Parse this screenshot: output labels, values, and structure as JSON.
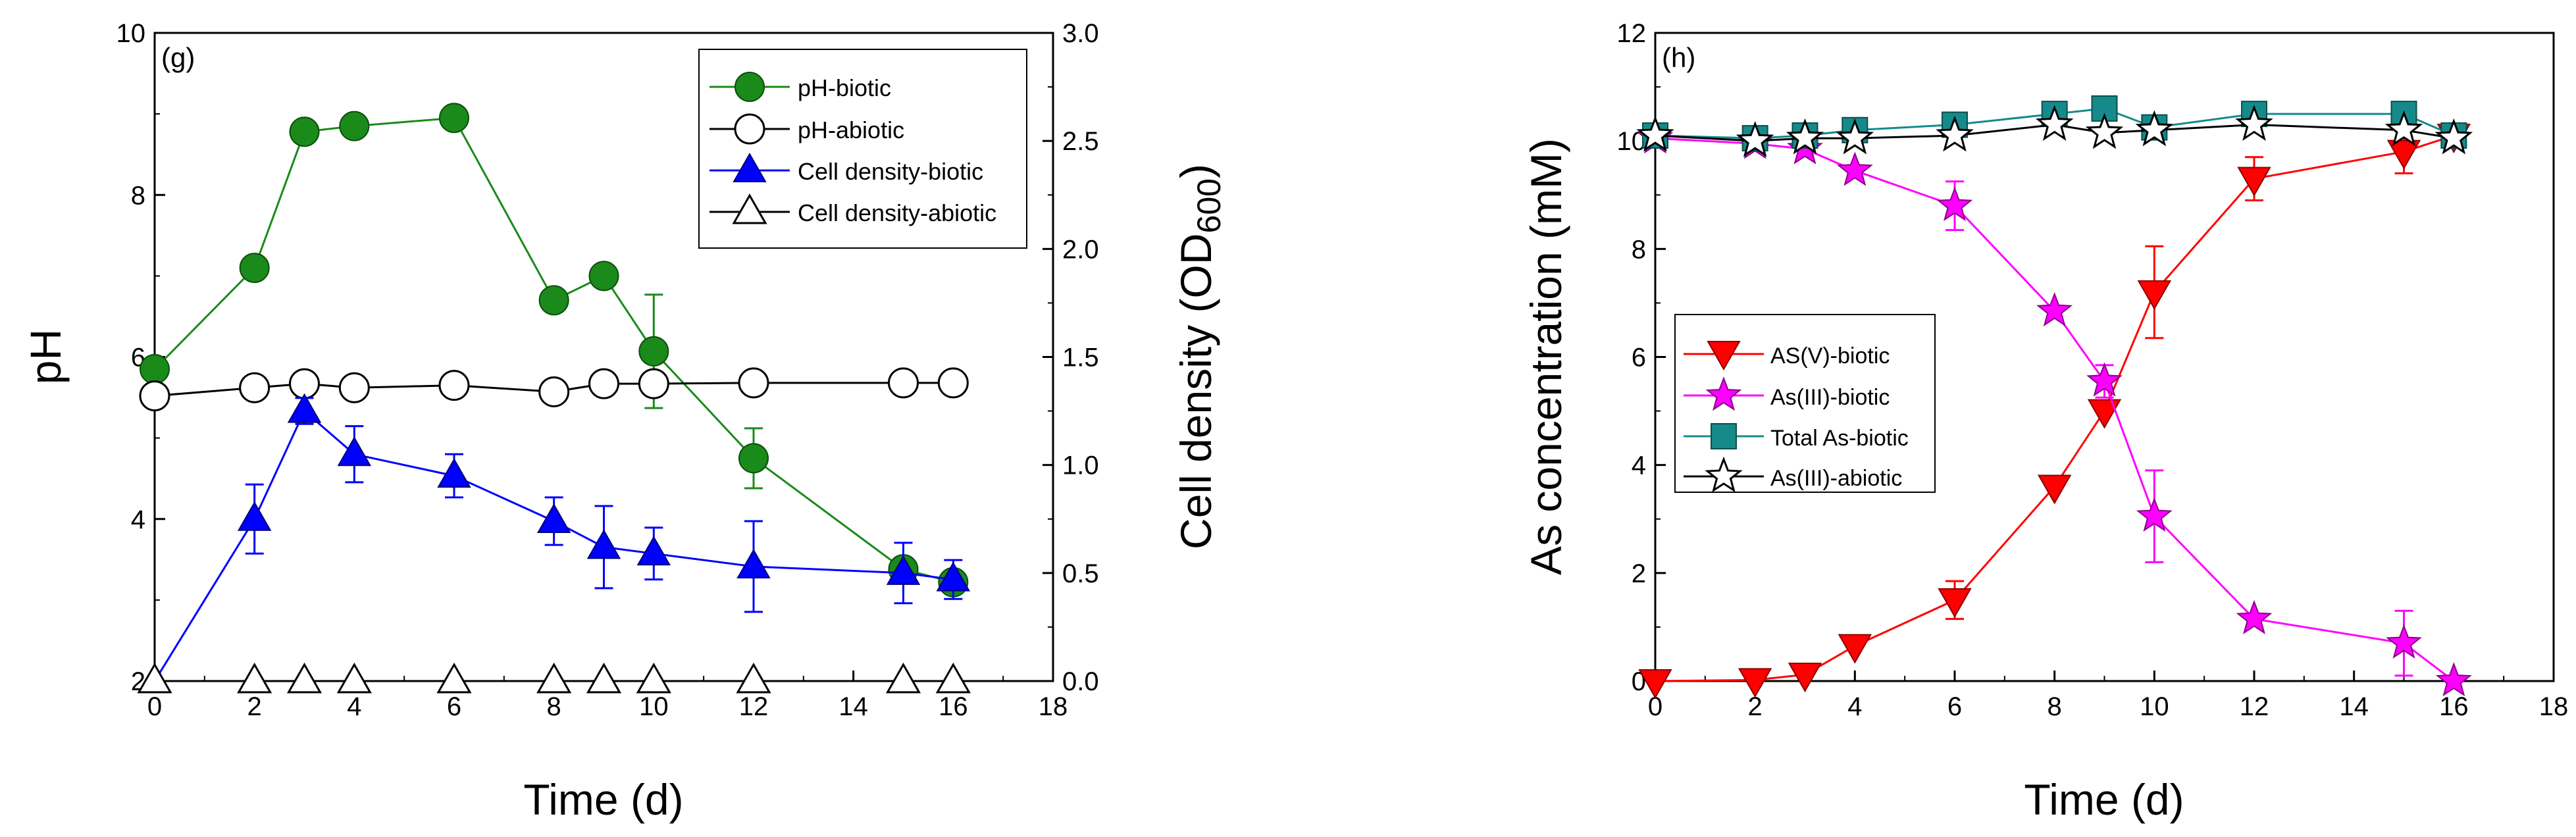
{
  "colors": {
    "green": "#1a8a1a",
    "blue": "#0000ff",
    "red": "#ff0000",
    "magenta": "#ff00ff",
    "teal": "#168a8a",
    "black": "#000000"
  },
  "chart_data": [
    {
      "type": "line",
      "panel_label": "(g)",
      "xlabel": "Time (d)",
      "ylabel_left": "pH",
      "ylabel_right_prefix": "Cell density (OD",
      "ylabel_right_sub": "600",
      "ylabel_right_suffix": ")",
      "xlim": [
        0,
        18
      ],
      "ylim_left": [
        2,
        10
      ],
      "ylim_right": [
        0,
        3.0
      ],
      "x_ticks": [
        "0",
        "2",
        "4",
        "6",
        "8",
        "10",
        "12",
        "14",
        "16",
        "18"
      ],
      "y_left_ticks": [
        "2",
        "4",
        "6",
        "8",
        "10"
      ],
      "y_right_ticks": [
        "0.0",
        "0.5",
        "1.0",
        "1.5",
        "2.0",
        "2.5",
        "3.0"
      ],
      "legend_position": "top-right",
      "series": [
        {
          "name": "pH-biotic",
          "axis": "left",
          "marker": "circle",
          "fill": "green",
          "line": "green",
          "x": [
            0,
            2,
            3,
            4,
            6,
            8,
            9,
            10,
            12,
            15,
            16
          ],
          "y": [
            5.85,
            7.1,
            8.78,
            8.85,
            8.95,
            6.7,
            7.0,
            6.07,
            4.75,
            3.38,
            3.22
          ],
          "err": [
            0,
            0,
            0,
            0,
            0,
            0,
            0,
            0.7,
            0.37,
            0,
            0
          ]
        },
        {
          "name": "pH-abiotic",
          "axis": "left",
          "marker": "circle",
          "fill": "white",
          "line": "black",
          "x": [
            0,
            2,
            3,
            4,
            6,
            8,
            9,
            10,
            12,
            15,
            16
          ],
          "y": [
            5.52,
            5.62,
            5.67,
            5.62,
            5.65,
            5.57,
            5.67,
            5.67,
            5.68,
            5.68,
            5.68
          ],
          "err": [
            0,
            0,
            0,
            0,
            0,
            0,
            0,
            0,
            0,
            0,
            0
          ]
        },
        {
          "name": "Cell density-biotic",
          "axis": "right",
          "marker": "triangle-up",
          "fill": "blue",
          "line": "blue",
          "x": [
            0,
            2,
            3,
            4,
            6,
            8,
            9,
            10,
            12,
            15,
            16
          ],
          "y": [
            0.0,
            0.75,
            1.25,
            1.05,
            0.95,
            0.74,
            0.62,
            0.59,
            0.53,
            0.5,
            0.47
          ],
          "err": [
            0,
            0.16,
            0.06,
            0.13,
            0.1,
            0.11,
            0.19,
            0.12,
            0.21,
            0.14,
            0.09
          ]
        },
        {
          "name": "Cell density-abiotic",
          "axis": "right",
          "marker": "triangle-up",
          "fill": "white",
          "line": "black",
          "x": [
            0,
            2,
            3,
            4,
            6,
            8,
            9,
            10,
            12,
            15,
            16
          ],
          "y": [
            0,
            0,
            0,
            0,
            0,
            0,
            0,
            0,
            0,
            0,
            0
          ],
          "err": [
            0,
            0,
            0,
            0,
            0,
            0,
            0,
            0,
            0,
            0,
            0
          ],
          "connect": false
        }
      ]
    },
    {
      "type": "line",
      "panel_label": "(h)",
      "xlabel": "Time (d)",
      "ylabel_left": "As concentration (mM)",
      "xlim": [
        0,
        18
      ],
      "ylim_left": [
        0,
        12
      ],
      "x_ticks": [
        "0",
        "2",
        "4",
        "6",
        "8",
        "10",
        "12",
        "14",
        "16",
        "18"
      ],
      "y_left_ticks": [
        "0",
        "2",
        "4",
        "6",
        "8",
        "10",
        "12"
      ],
      "legend_position": "center-left",
      "series": [
        {
          "name": "AS(V)-biotic",
          "axis": "left",
          "marker": "triangle-down",
          "fill": "red",
          "line": "red",
          "x": [
            0,
            2,
            3,
            4,
            6,
            8,
            9,
            10,
            12,
            15,
            16
          ],
          "y": [
            0.0,
            0.02,
            0.12,
            0.65,
            1.5,
            3.6,
            5.0,
            7.2,
            9.3,
            9.8,
            10.1
          ],
          "err": [
            0,
            0,
            0,
            0,
            0.35,
            0,
            0,
            0.85,
            0.4,
            0.4,
            0
          ]
        },
        {
          "name": "As(III)-biotic",
          "axis": "left",
          "marker": "star",
          "fill": "magenta",
          "line": "magenta",
          "x": [
            0,
            2,
            3,
            4,
            6,
            8,
            9,
            10,
            12,
            15,
            16
          ],
          "y": [
            10.05,
            9.95,
            9.85,
            9.45,
            8.8,
            6.85,
            5.55,
            3.05,
            1.15,
            0.7,
            0.0
          ],
          "err": [
            0,
            0,
            0,
            0,
            0.45,
            0,
            0.3,
            0.85,
            0,
            0.6,
            0
          ]
        },
        {
          "name": "Total As-biotic",
          "axis": "left",
          "marker": "square",
          "fill": "teal",
          "line": "teal",
          "x": [
            0,
            2,
            3,
            4,
            6,
            8,
            9,
            10,
            12,
            15,
            16
          ],
          "y": [
            10.1,
            10.05,
            10.1,
            10.2,
            10.3,
            10.5,
            10.6,
            10.25,
            10.5,
            10.5,
            10.1
          ],
          "err": [
            0,
            0,
            0,
            0,
            0,
            0,
            0,
            0,
            0,
            0,
            0
          ]
        },
        {
          "name": "As(III)-abiotic",
          "axis": "left",
          "marker": "star",
          "fill": "white",
          "line": "black",
          "x": [
            0,
            2,
            3,
            4,
            6,
            8,
            9,
            10,
            12,
            15,
            16
          ],
          "y": [
            10.1,
            10.0,
            10.05,
            10.05,
            10.1,
            10.3,
            10.15,
            10.2,
            10.3,
            10.2,
            10.05
          ],
          "err": [
            0,
            0,
            0,
            0,
            0,
            0,
            0,
            0,
            0,
            0,
            0
          ]
        }
      ]
    }
  ]
}
